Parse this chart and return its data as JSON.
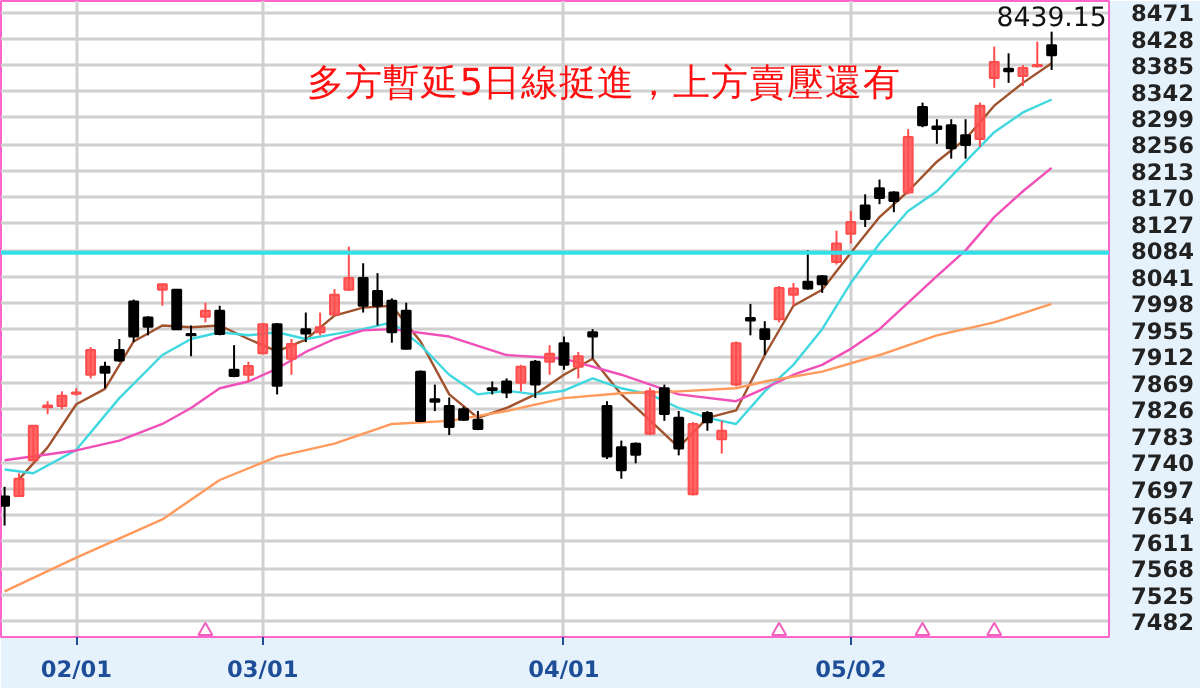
{
  "chart_data": {
    "type": "candlestick",
    "categories": [
      null,
      null,
      null,
      null,
      null,
      "02/01",
      null,
      null,
      null,
      null,
      null,
      null,
      null,
      null,
      null,
      null,
      null,
      null,
      "03/01",
      null,
      null,
      null,
      null,
      null,
      null,
      null,
      null,
      null,
      null,
      null,
      null,
      null,
      null,
      null,
      null,
      null,
      null,
      null,
      null,
      "04/01",
      null,
      null,
      null,
      null,
      null,
      null,
      null,
      null,
      null,
      null,
      null,
      null,
      null,
      null,
      null,
      null,
      null,
      null,
      null,
      "05/02",
      null,
      null,
      null,
      null,
      null,
      null,
      null,
      null,
      null,
      null,
      null,
      null,
      null,
      null
    ],
    "ohlc": [
      [
        7684,
        7700,
        7637,
        7669
      ],
      [
        7685,
        7722,
        7684,
        7713
      ],
      [
        7743,
        7800,
        7742,
        7799
      ],
      [
        7829,
        7839,
        7818,
        7832
      ],
      [
        7831,
        7855,
        7826,
        7848
      ],
      [
        7851,
        7860,
        7848,
        7853
      ],
      [
        7882,
        7927,
        7876,
        7922
      ],
      [
        7895,
        7903,
        7860,
        7885
      ],
      [
        7922,
        7940,
        7903,
        7905
      ],
      [
        8001,
        8004,
        7935,
        7944
      ],
      [
        7975,
        7977,
        7946,
        7960
      ],
      [
        8020,
        8030,
        7994,
        8029
      ],
      [
        8020,
        8021,
        7955,
        7956
      ],
      [
        7948,
        7962,
        7912,
        7946
      ],
      [
        7976,
        7999,
        7967,
        7986
      ],
      [
        7986,
        7994,
        7946,
        7948
      ],
      [
        7890,
        7930,
        7878,
        7880
      ],
      [
        7882,
        7903,
        7871,
        7896
      ],
      [
        7917,
        7966,
        7915,
        7964
      ],
      [
        7964,
        7966,
        7850,
        7864
      ],
      [
        7908,
        7940,
        7882,
        7932
      ],
      [
        7956,
        7983,
        7935,
        7949
      ],
      [
        7951,
        7983,
        7946,
        7959
      ],
      [
        7980,
        8021,
        7978,
        8012
      ],
      [
        8020,
        8090,
        8018,
        8039
      ],
      [
        8039,
        8063,
        7983,
        7994
      ],
      [
        8018,
        8047,
        7962,
        7994
      ],
      [
        8002,
        8006,
        7934,
        7951
      ],
      [
        7986,
        7999,
        7923,
        7924
      ],
      [
        7887,
        7889,
        7805,
        7807
      ],
      [
        7842,
        7866,
        7823,
        7838
      ],
      [
        7831,
        7845,
        7784,
        7797
      ],
      [
        7826,
        7830,
        7807,
        7809
      ],
      [
        7809,
        7823,
        7792,
        7794
      ],
      [
        7860,
        7871,
        7850,
        7857
      ],
      [
        7871,
        7876,
        7844,
        7853
      ],
      [
        7869,
        7898,
        7855,
        7895
      ],
      [
        7903,
        7906,
        7844,
        7866
      ],
      [
        7903,
        7930,
        7882,
        7916
      ],
      [
        7933,
        7944,
        7890,
        7898
      ],
      [
        7895,
        7919,
        7876,
        7912
      ],
      [
        7951,
        7956,
        7908,
        7944
      ],
      [
        7831,
        7839,
        7745,
        7749
      ],
      [
        7764,
        7775,
        7713,
        7727
      ],
      [
        7770,
        7772,
        7738,
        7752
      ],
      [
        7786,
        7861,
        7784,
        7855
      ],
      [
        7860,
        7866,
        7807,
        7818
      ],
      [
        7812,
        7823,
        7751,
        7762
      ],
      [
        7688,
        7805,
        7686,
        7802
      ],
      [
        7820,
        7823,
        7791,
        7805
      ],
      [
        7777,
        7807,
        7754,
        7791
      ],
      [
        7866,
        7936,
        7863,
        7933
      ],
      [
        7974,
        7997,
        7946,
        7970
      ],
      [
        7956,
        7969,
        7914,
        7940
      ],
      [
        7972,
        8026,
        7967,
        8023
      ],
      [
        8012,
        8031,
        7994,
        8022
      ],
      [
        8033,
        8084,
        8020,
        8022
      ],
      [
        8042,
        8044,
        8015,
        8029
      ],
      [
        8065,
        8116,
        8061,
        8095
      ],
      [
        8111,
        8148,
        8095,
        8130
      ],
      [
        8157,
        8175,
        8122,
        8135
      ],
      [
        8185,
        8199,
        8159,
        8169
      ],
      [
        8178,
        8180,
        8146,
        8164
      ],
      [
        8178,
        8281,
        8175,
        8268
      ],
      [
        8317,
        8324,
        8284,
        8287
      ],
      [
        8285,
        8297,
        8257,
        8281
      ],
      [
        8287,
        8297,
        8233,
        8250
      ],
      [
        8271,
        8297,
        8233,
        8255
      ],
      [
        8265,
        8324,
        8252,
        8319
      ],
      [
        8364,
        8415,
        8348,
        8390
      ],
      [
        8379,
        8404,
        8356,
        8375
      ],
      [
        8367,
        8385,
        8351,
        8380
      ],
      [
        8383,
        8423,
        8381,
        8385
      ],
      [
        8417,
        8439.15,
        8377,
        8401
      ]
    ],
    "colors": [
      "#000000",
      "#ff4d4d",
      "#ff4d4d",
      "#ff4d4d",
      "#ff4d4d",
      "#ff4d4d",
      "#ff4d4d",
      "#000000",
      "#000000",
      "#000000",
      "#000000",
      "#ff4d4d",
      "#000000",
      "#000000",
      "#ff4d4d",
      "#000000",
      "#000000",
      "#ff4d4d",
      "#ff4d4d",
      "#000000",
      "#ff4d4d",
      "#000000",
      "#ff4d4d",
      "#ff4d4d",
      "#ff4d4d",
      "#000000",
      "#000000",
      "#000000",
      "#000000",
      "#000000",
      "#000000",
      "#000000",
      "#000000",
      "#000000",
      "#000000",
      "#000000",
      "#ff4d4d",
      "#000000",
      "#ff4d4d",
      "#000000",
      "#ff4d4d",
      "#000000",
      "#000000",
      "#000000",
      "#000000",
      "#ff4d4d",
      "#000000",
      "#000000",
      "#ff4d4d",
      "#000000",
      "#ff4d4d",
      "#ff4d4d",
      "#000000",
      "#000000",
      "#ff4d4d",
      "#ff4d4d",
      "#000000",
      "#000000",
      "#ff4d4d",
      "#ff4d4d",
      "#000000",
      "#000000",
      "#000000",
      "#ff4d4d",
      "#000000",
      "#000000",
      "#000000",
      "#000000",
      "#ff4d4d",
      "#ff4d4d",
      "#000000",
      "#ff4d4d",
      "#ff4d4d",
      "#000000"
    ],
    "series": [
      {
        "type": "line",
        "color": "#a0522d",
        "values": [
          null,
          7712,
          null,
          7764,
          null,
          7834,
          null,
          7859,
          null,
          7936,
          null,
          7962,
          null,
          7959,
          null,
          7962,
          null,
          7940,
          null,
          7920,
          null,
          7939,
          null,
          7978,
          null,
          7991,
          null,
          7994,
          null,
          7936,
          null,
          7850,
          null,
          7812,
          null,
          7828,
          null,
          7850,
          null,
          7882,
          null,
          7908,
          null,
          7850,
          null,
          7808,
          null,
          7764,
          null,
          7812,
          null,
          7824,
          null,
          7914,
          null,
          7994,
          null,
          8020,
          null,
          8080,
          null,
          8138,
          null,
          8180,
          null,
          8228,
          null,
          8265,
          null,
          8319,
          null,
          8356,
          null,
          8388
        ]
      },
      {
        "type": "line",
        "color": "#40d8e0",
        "values": [
          7728,
          null,
          7722,
          null,
          null,
          7760,
          null,
          null,
          7844,
          null,
          null,
          7914,
          null,
          7940,
          null,
          7951,
          null,
          7946,
          null,
          7951,
          null,
          7940,
          null,
          7948,
          null,
          7956,
          null,
          7967,
          null,
          7930,
          null,
          7882,
          null,
          7850,
          null,
          7856,
          null,
          7850,
          null,
          7856,
          null,
          7876,
          null,
          7860,
          null,
          7850,
          null,
          7828,
          null,
          7812,
          null,
          7802,
          null,
          7855,
          null,
          7898,
          null,
          7956,
          null,
          8031,
          null,
          8095,
          null,
          8148,
          null,
          8180,
          null,
          8228,
          null,
          8276,
          null,
          8308,
          null,
          8329
        ]
      },
      {
        "type": "line",
        "color": "#f050b8",
        "values": [
          7743,
          null,
          null,
          null,
          null,
          7759,
          null,
          null,
          7775,
          null,
          null,
          7802,
          null,
          7828,
          null,
          7860,
          null,
          7871,
          null,
          7892,
          null,
          7919,
          null,
          7940,
          null,
          7954,
          null,
          7956,
          null,
          null,
          null,
          7944,
          null,
          null,
          null,
          7914,
          null,
          null,
          null,
          7908,
          null,
          null,
          null,
          7882,
          null,
          null,
          null,
          7850,
          null,
          null,
          null,
          7839,
          null,
          7860,
          null,
          7882,
          null,
          7898,
          null,
          7924,
          null,
          7956,
          null,
          7999,
          null,
          8042,
          null,
          8084,
          null,
          8138,
          null,
          8180,
          null,
          8218
        ]
      },
      {
        "type": "line",
        "color": "#ff9a5c",
        "values": [
          7530,
          null,
          null,
          null,
          null,
          7585,
          null,
          null,
          null,
          null,
          null,
          7647,
          null,
          null,
          null,
          7711,
          null,
          null,
          null,
          7749,
          null,
          null,
          null,
          7770,
          null,
          null,
          null,
          7802,
          null,
          null,
          null,
          7807,
          null,
          null,
          null,
          7823,
          null,
          null,
          null,
          7844,
          null,
          null,
          null,
          7852,
          null,
          null,
          null,
          7855,
          null,
          null,
          null,
          7860,
          null,
          7871,
          null,
          null,
          null,
          7887,
          null,
          null,
          null,
          7914,
          null,
          null,
          null,
          7946,
          null,
          null,
          null,
          7967,
          null,
          null,
          null,
          7997
        ]
      },
      {
        "type": "scatter",
        "color": "#f060c0",
        "marker": "triangle",
        "values": [
          null,
          null,
          null,
          null,
          null,
          null,
          null,
          null,
          null,
          null,
          null,
          null,
          null,
          null,
          7466,
          null,
          null,
          null,
          null,
          null,
          null,
          null,
          null,
          null,
          null,
          null,
          null,
          null,
          null,
          null,
          null,
          null,
          null,
          null,
          null,
          null,
          null,
          null,
          null,
          null,
          null,
          null,
          null,
          null,
          null,
          null,
          null,
          null,
          null,
          null,
          null,
          null,
          null,
          null,
          7466,
          null,
          null,
          null,
          null,
          null,
          null,
          null,
          null,
          null,
          7466,
          null,
          null,
          null,
          null,
          7466,
          null,
          null,
          null,
          null
        ]
      }
    ],
    "ylim": [
      7456,
      8489
    ],
    "yticks": [
      7482,
      7525,
      7568,
      7611,
      7654,
      7697,
      7740,
      7783,
      7826,
      7869,
      7912,
      7955,
      7998,
      8041,
      8084,
      8127,
      8170,
      8213,
      8256,
      8299,
      8342,
      8385,
      8428,
      8471
    ],
    "ref_lines": [
      {
        "axis": "y",
        "value": 8080,
        "color": "#33e0e8"
      }
    ],
    "annotations": [
      "多方暫延5日線挺進，上方賣壓還有",
      {
        "text": "8439.15",
        "y": 8439.15
      }
    ],
    "grid": true
  }
}
